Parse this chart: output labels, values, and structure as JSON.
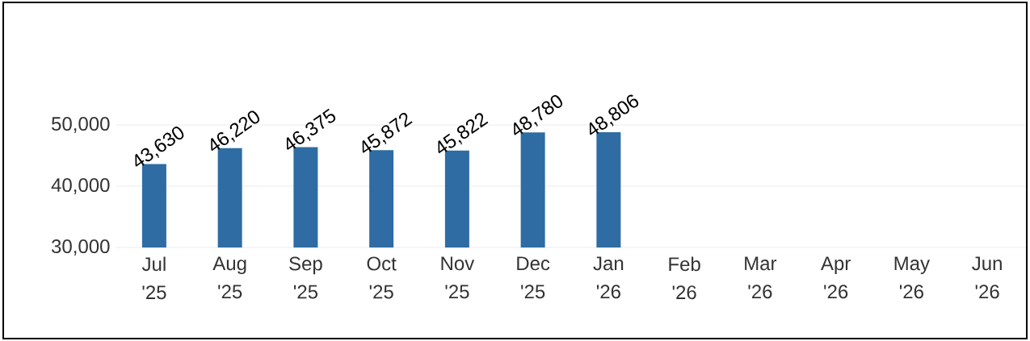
{
  "chart_data": {
    "type": "bar",
    "categories": [
      "Jul '25",
      "Aug '25",
      "Sep '25",
      "Oct '25",
      "Nov '25",
      "Dec '25",
      "Jan '26",
      "Feb '26",
      "Mar '26",
      "Apr '26",
      "May '26",
      "Jun '26"
    ],
    "values": [
      43630,
      46220,
      46375,
      45872,
      45822,
      48780,
      48806,
      null,
      null,
      null,
      null,
      null
    ],
    "color": "#2e6ca3",
    "ylim": [
      30000,
      50000
    ],
    "yticks": [
      {
        "value": 30000,
        "label": "30,000"
      },
      {
        "value": 40000,
        "label": "40,000"
      },
      {
        "value": 50000,
        "label": "50,000"
      }
    ],
    "grid": "y",
    "value_labels": [
      "43,630",
      "46,220",
      "46,375",
      "45,872",
      "45,822",
      "48,780",
      "48,806",
      null,
      null,
      null,
      null,
      null
    ]
  }
}
